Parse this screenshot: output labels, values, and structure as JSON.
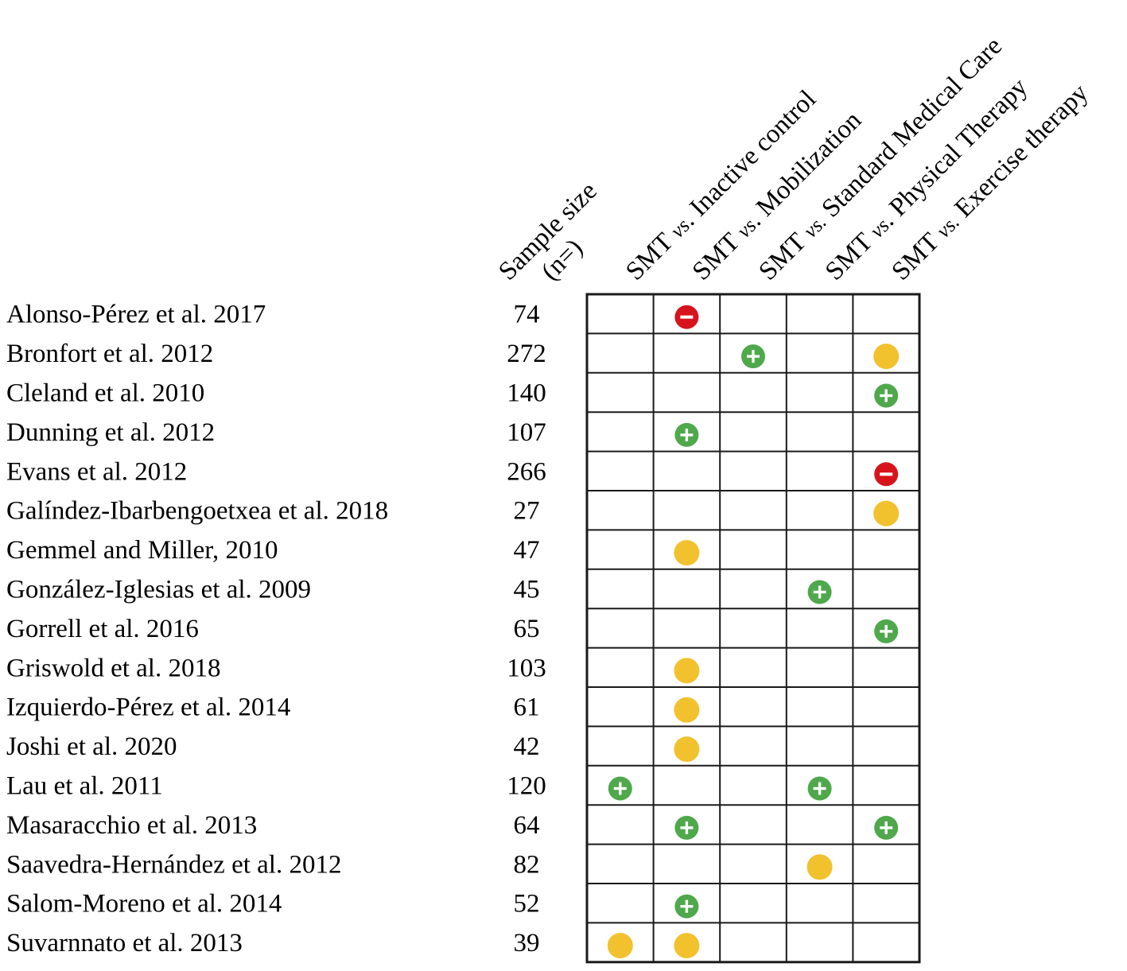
{
  "chart_data": {
    "type": "table",
    "sample_size_header": [
      "Sample size",
      "(n=)"
    ],
    "columns": [
      {
        "key": "inactive",
        "pre": "SMT ",
        "vs": "vs",
        "post": ". Inactive control"
      },
      {
        "key": "mobilization",
        "pre": "SMT ",
        "vs": "vs",
        "post": ". Mobilization"
      },
      {
        "key": "standard",
        "pre": "SMT ",
        "vs": "vs.",
        "post": " Standard Medical Care"
      },
      {
        "key": "physical",
        "pre": "SMT ",
        "vs": "vs",
        "post": ". Physical Therapy"
      },
      {
        "key": "exercise",
        "pre": "SMT ",
        "vs": "vs.",
        "post": " Exercise therapy"
      }
    ],
    "symbols": {
      "positive": {
        "color": "#4fa84b",
        "glyph": "+"
      },
      "negative": {
        "color": "#d7141c",
        "glyph": "−"
      },
      "neutral": {
        "color": "#f2c12e",
        "glyph": ""
      }
    },
    "rows": [
      {
        "study": "Alonso-Pérez et al. 2017",
        "n": "74",
        "cells": [
          null,
          "negative",
          null,
          null,
          null
        ]
      },
      {
        "study": "Bronfort et al. 2012",
        "n": "272",
        "cells": [
          null,
          null,
          "positive",
          null,
          "neutral"
        ]
      },
      {
        "study": "Cleland et al. 2010",
        "n": "140",
        "cells": [
          null,
          null,
          null,
          null,
          "positive"
        ]
      },
      {
        "study": "Dunning et al. 2012",
        "n": "107",
        "cells": [
          null,
          "positive",
          null,
          null,
          null
        ]
      },
      {
        "study": "Evans et al. 2012",
        "n": "266",
        "cells": [
          null,
          null,
          null,
          null,
          "negative"
        ]
      },
      {
        "study": "Galíndez-Ibarbengoetxea et al. 2018",
        "n": "27",
        "cells": [
          null,
          null,
          null,
          null,
          "neutral"
        ]
      },
      {
        "study": "Gemmel and Miller, 2010",
        "n": "47",
        "cells": [
          null,
          "neutral",
          null,
          null,
          null
        ]
      },
      {
        "study": "González-Iglesias et al. 2009",
        "n": "45",
        "cells": [
          null,
          null,
          null,
          "positive",
          null
        ]
      },
      {
        "study": "Gorrell et al. 2016",
        "n": "65",
        "cells": [
          null,
          null,
          null,
          null,
          "positive"
        ]
      },
      {
        "study": "Griswold et al. 2018",
        "n": "103",
        "cells": [
          null,
          "neutral",
          null,
          null,
          null
        ]
      },
      {
        "study": "Izquierdo-Pérez et al. 2014",
        "n": "61",
        "cells": [
          null,
          "neutral",
          null,
          null,
          null
        ]
      },
      {
        "study": "Joshi et al. 2020",
        "n": "42",
        "cells": [
          null,
          "neutral",
          null,
          null,
          null
        ]
      },
      {
        "study": "Lau et al. 2011",
        "n": "120",
        "cells": [
          "positive",
          null,
          null,
          "positive",
          null
        ]
      },
      {
        "study": "Masaracchio et al. 2013",
        "n": "64",
        "cells": [
          null,
          "positive",
          null,
          null,
          "positive"
        ]
      },
      {
        "study": "Saavedra-Hernández et al. 2012",
        "n": "82",
        "cells": [
          null,
          null,
          null,
          "neutral",
          null
        ]
      },
      {
        "study": "Salom-Moreno et al. 2014",
        "n": "52",
        "cells": [
          null,
          "positive",
          null,
          null,
          null
        ]
      },
      {
        "study": "Suvarnnato et al. 2013",
        "n": "39",
        "cells": [
          "neutral",
          "neutral",
          null,
          null,
          null
        ]
      }
    ]
  }
}
